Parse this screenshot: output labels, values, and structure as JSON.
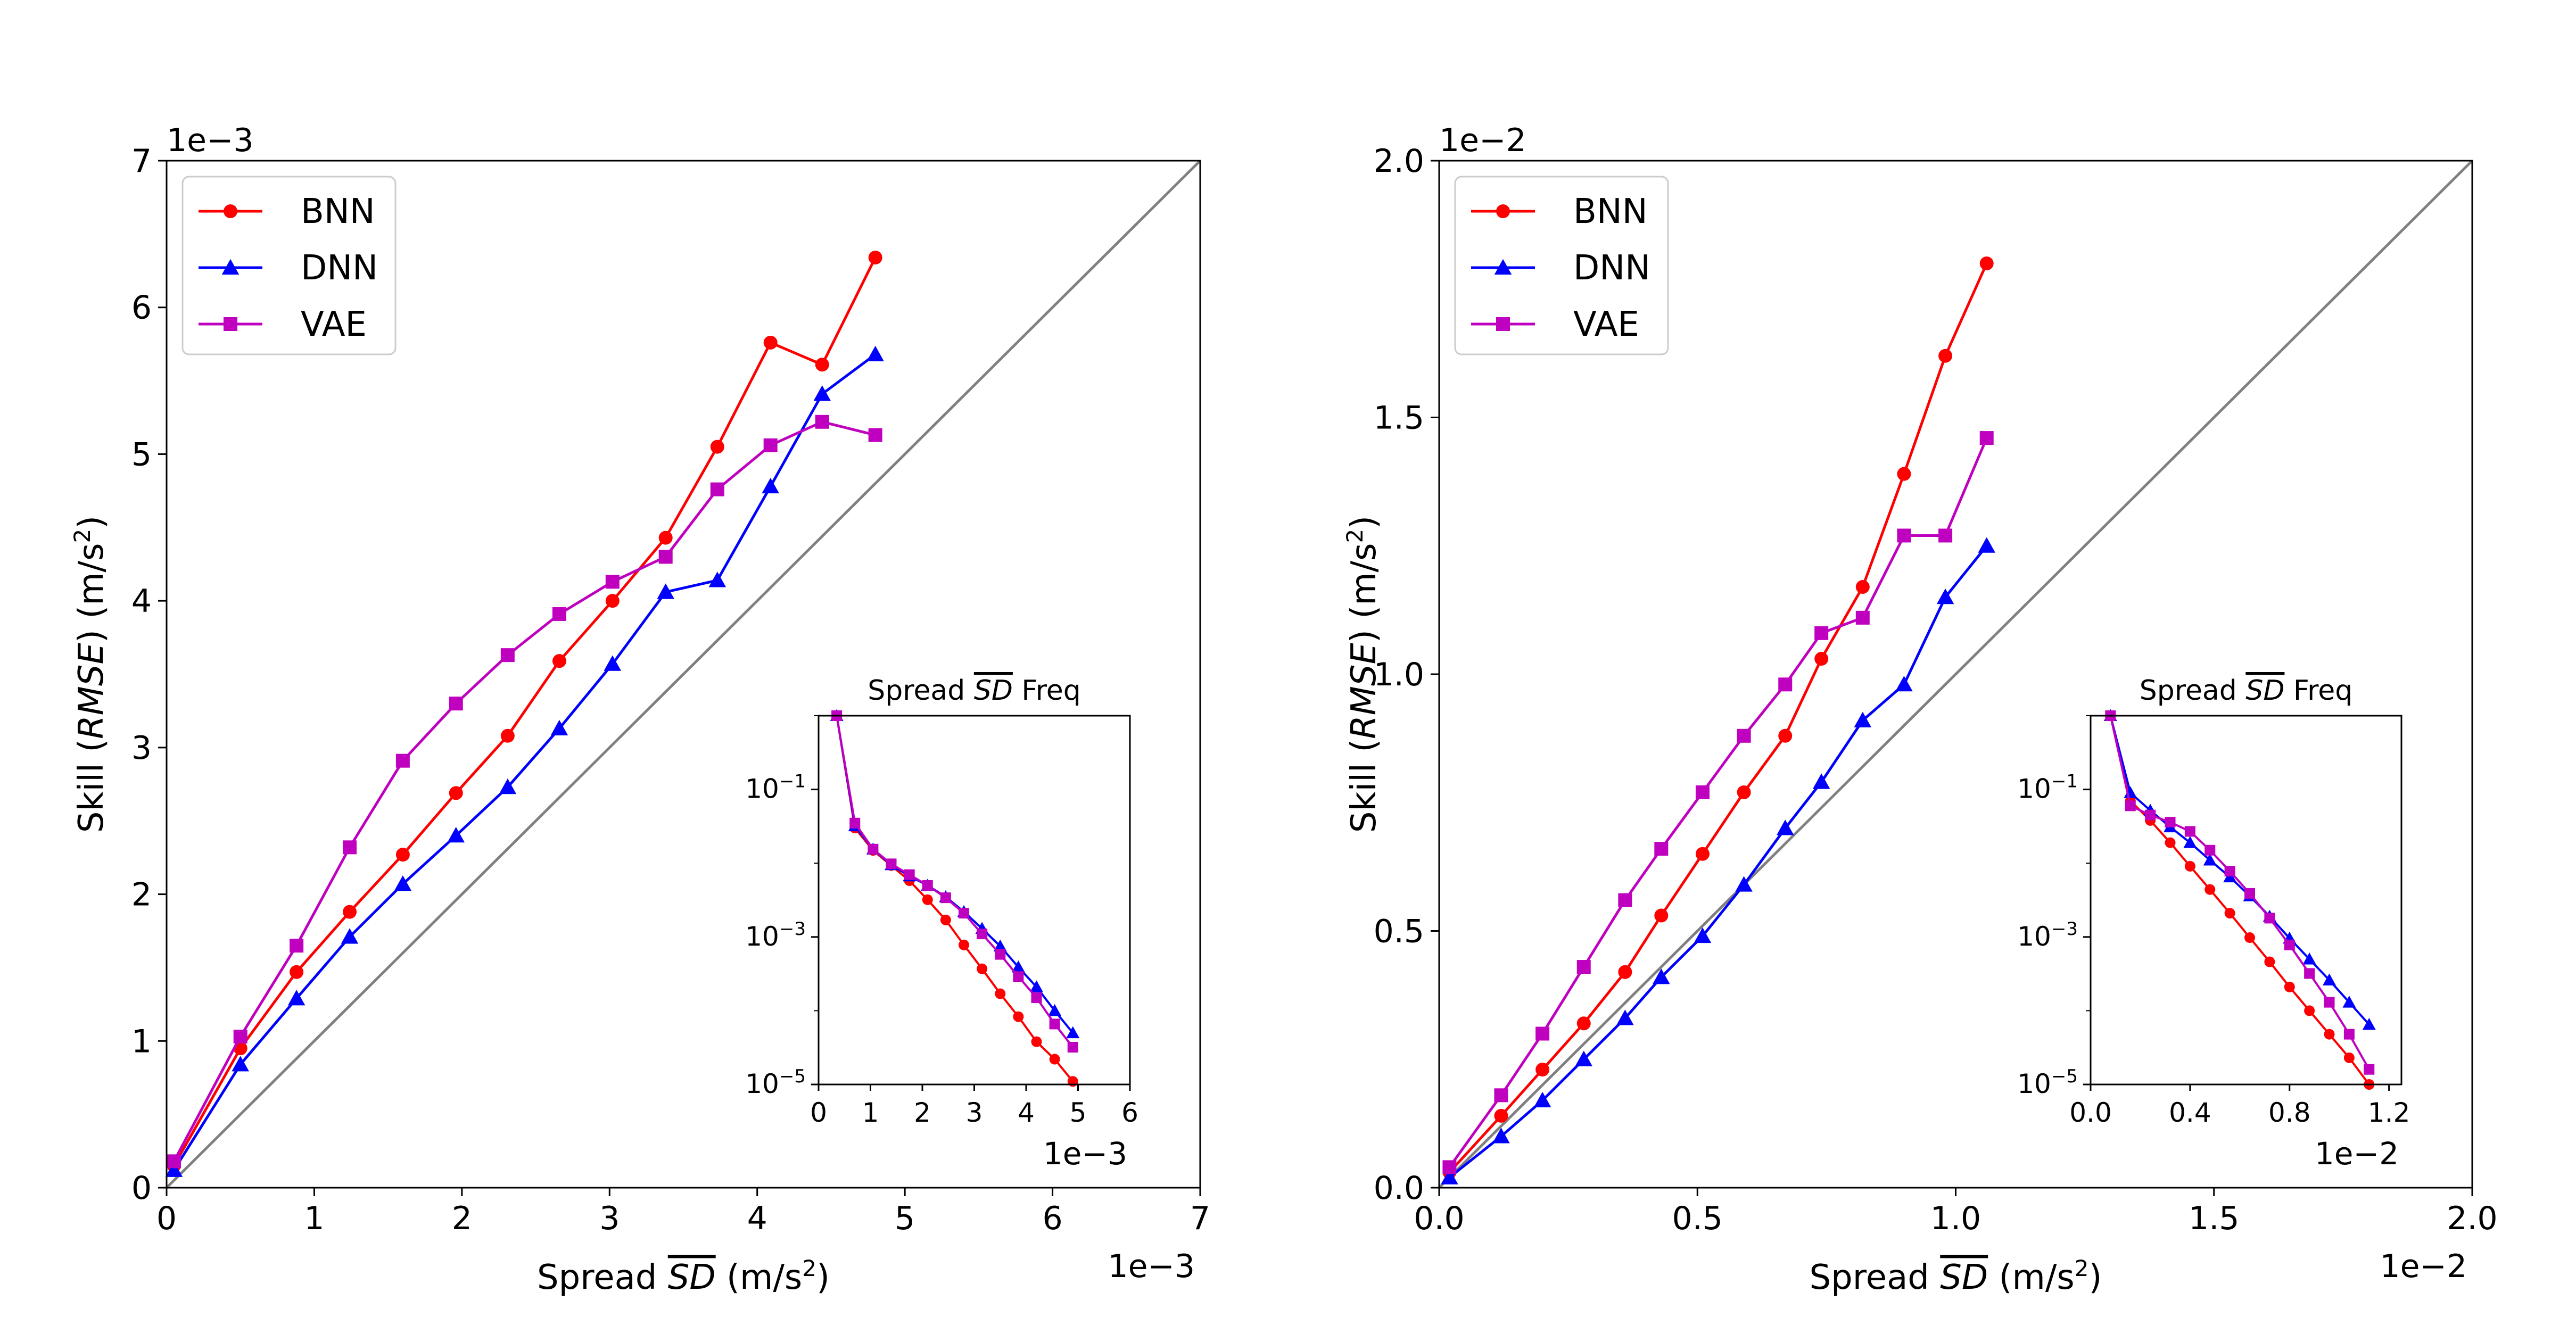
{
  "chart_data": [
    {
      "type": "line",
      "id": "left",
      "offset_label_y": "1e−3",
      "offset_label_x": "1e−3",
      "xlabel_pre": "Spread ",
      "xlabel_sym": "SD",
      "xlabel_post": " (m/s",
      "ylabel_pre": "Skill (",
      "ylabel_sym": "RMSE",
      "ylabel_post": ") (m/s",
      "xlim": [
        0,
        7
      ],
      "ylim": [
        0,
        7
      ],
      "xticks": [
        0,
        1,
        2,
        3,
        4,
        5,
        6,
        7
      ],
      "yticks": [
        0,
        1,
        2,
        3,
        4,
        5,
        6,
        7
      ],
      "xtick_labels": [
        "0",
        "1",
        "2",
        "3",
        "4",
        "5",
        "6",
        "7"
      ],
      "ytick_labels": [
        "0",
        "1",
        "2",
        "3",
        "4",
        "5",
        "6",
        "7"
      ],
      "legend_position": "top-left",
      "diagonal_color": "#808080",
      "series": [
        {
          "name": "BNN",
          "color": "#ff0000",
          "marker": "circle",
          "x": [
            0.05,
            0.5,
            0.88,
            1.24,
            1.6,
            1.96,
            2.31,
            2.66,
            3.02,
            3.38,
            3.73,
            4.09,
            4.44,
            4.8
          ],
          "y": [
            0.15,
            0.95,
            1.47,
            1.88,
            2.27,
            2.69,
            3.08,
            3.59,
            4.0,
            4.43,
            5.05,
            5.76,
            5.61,
            6.34
          ]
        },
        {
          "name": "DNN",
          "color": "#0000ff",
          "marker": "triangle",
          "x": [
            0.05,
            0.5,
            0.88,
            1.24,
            1.6,
            1.96,
            2.31,
            2.66,
            3.02,
            3.38,
            3.73,
            4.09,
            4.44,
            4.8
          ],
          "y": [
            0.12,
            0.84,
            1.29,
            1.71,
            2.07,
            2.4,
            2.73,
            3.13,
            3.57,
            4.06,
            4.14,
            4.78,
            5.41,
            5.68
          ]
        },
        {
          "name": "VAE",
          "color": "#bf00bf",
          "marker": "square",
          "x": [
            0.05,
            0.5,
            0.88,
            1.24,
            1.6,
            1.96,
            2.31,
            2.66,
            3.02,
            3.38,
            3.73,
            4.09,
            4.44,
            4.8
          ],
          "y": [
            0.18,
            1.03,
            1.65,
            2.32,
            2.91,
            3.3,
            3.63,
            3.91,
            4.13,
            4.3,
            4.76,
            5.06,
            5.22,
            5.13
          ]
        }
      ],
      "inset": {
        "title_pre": "Spread ",
        "title_sym": "SD",
        "title_post": " Freq",
        "offset_label_x": "1e−3",
        "xlim": [
          0,
          6
        ],
        "ylog_lim": [
          -5,
          0
        ],
        "xticks": [
          0,
          1,
          2,
          3,
          4,
          5,
          6
        ],
        "xtick_labels": [
          "0",
          "1",
          "2",
          "3",
          "4",
          "5",
          "6"
        ],
        "yticks_exp": [
          -5,
          -3,
          -1
        ],
        "series": [
          {
            "name": "BNN",
            "color": "#ff0000",
            "marker": "circle",
            "x": [
              0.35,
              0.7,
              1.05,
              1.4,
              1.75,
              2.1,
              2.45,
              2.8,
              3.15,
              3.5,
              3.85,
              4.2,
              4.55,
              4.9
            ],
            "y": [
              1.0,
              0.03,
              0.0149,
              0.0093,
              0.0058,
              0.0032,
              0.0017,
              0.00078,
              0.00037,
              0.00017,
              8.3e-05,
              3.8e-05,
              2.2e-05,
              1.1e-05
            ]
          },
          {
            "name": "DNN",
            "color": "#0000ff",
            "marker": "triangle",
            "x": [
              0.35,
              0.7,
              1.05,
              1.4,
              1.75,
              2.1,
              2.45,
              2.8,
              3.15,
              3.5,
              3.85,
              4.2,
              4.55,
              4.9
            ],
            "y": [
              1.0,
              0.032,
              0.0155,
              0.0095,
              0.0067,
              0.005,
              0.0035,
              0.0022,
              0.0013,
              0.00075,
              0.00039,
              0.00021,
              0.0001,
              5e-05
            ]
          },
          {
            "name": "VAE",
            "color": "#bf00bf",
            "marker": "square",
            "x": [
              0.35,
              0.7,
              1.05,
              1.4,
              1.75,
              2.1,
              2.45,
              2.8,
              3.15,
              3.5,
              3.85,
              4.2,
              4.55,
              4.9
            ],
            "y": [
              1.0,
              0.035,
              0.0155,
              0.0098,
              0.007,
              0.005,
              0.0034,
              0.0021,
              0.0011,
              0.00058,
              0.00029,
              0.00015,
              6.6e-05,
              3.2e-05
            ]
          }
        ]
      }
    },
    {
      "type": "line",
      "id": "right",
      "offset_label_y": "1e−2",
      "offset_label_x": "1e−2",
      "xlabel_pre": "Spread ",
      "xlabel_sym": "SD",
      "xlabel_post": " (m/s",
      "ylabel_pre": "Skill (",
      "ylabel_sym": "RMSE",
      "ylabel_post": ") (m/s",
      "xlim": [
        0,
        2.0
      ],
      "ylim": [
        0,
        2.0
      ],
      "xticks": [
        0,
        0.5,
        1.0,
        1.5,
        2.0
      ],
      "yticks": [
        0,
        0.5,
        1.0,
        1.5,
        2.0
      ],
      "xtick_labels": [
        "0.0",
        "0.5",
        "1.0",
        "1.5",
        "2.0"
      ],
      "ytick_labels": [
        "0.0",
        "0.5",
        "1.0",
        "1.5",
        "2.0"
      ],
      "legend_position": "top-left",
      "diagonal_color": "#808080",
      "series": [
        {
          "name": "BNN",
          "color": "#ff0000",
          "marker": "circle",
          "x": [
            0.02,
            0.12,
            0.2,
            0.28,
            0.36,
            0.43,
            0.51,
            0.59,
            0.67,
            0.74,
            0.82,
            0.9,
            0.98,
            1.06
          ],
          "y": [
            0.03,
            0.14,
            0.23,
            0.32,
            0.42,
            0.53,
            0.65,
            0.77,
            0.88,
            1.03,
            1.17,
            1.39,
            1.62,
            1.8
          ]
        },
        {
          "name": "DNN",
          "color": "#0000ff",
          "marker": "triangle",
          "x": [
            0.02,
            0.12,
            0.2,
            0.28,
            0.36,
            0.43,
            0.51,
            0.59,
            0.67,
            0.74,
            0.82,
            0.9,
            0.98,
            1.06
          ],
          "y": [
            0.02,
            0.1,
            0.17,
            0.25,
            0.33,
            0.41,
            0.49,
            0.59,
            0.7,
            0.79,
            0.91,
            0.98,
            1.15,
            1.25
          ]
        },
        {
          "name": "VAE",
          "color": "#bf00bf",
          "marker": "square",
          "x": [
            0.02,
            0.12,
            0.2,
            0.28,
            0.36,
            0.43,
            0.51,
            0.59,
            0.67,
            0.74,
            0.82,
            0.9,
            0.98,
            1.06
          ],
          "y": [
            0.04,
            0.18,
            0.3,
            0.43,
            0.56,
            0.66,
            0.77,
            0.88,
            0.98,
            1.08,
            1.11,
            1.27,
            1.27,
            1.46
          ]
        }
      ],
      "inset": {
        "title_pre": "Spread ",
        "title_sym": "SD",
        "title_post": " Freq",
        "offset_label_x": "1e−2",
        "xlim": [
          0,
          1.25
        ],
        "ylog_lim": [
          -5,
          0
        ],
        "xticks": [
          0,
          0.4,
          0.8,
          1.2
        ],
        "xtick_labels": [
          "0.0",
          "0.4",
          "0.8",
          "1.2"
        ],
        "yticks_exp": [
          -5,
          -3,
          -1
        ],
        "series": [
          {
            "name": "BNN",
            "color": "#ff0000",
            "marker": "circle",
            "x": [
              0.08,
              0.16,
              0.24,
              0.32,
              0.4,
              0.48,
              0.56,
              0.64,
              0.72,
              0.8,
              0.88,
              0.96,
              1.04,
              1.12
            ],
            "y": [
              1.0,
              0.07,
              0.038,
              0.019,
              0.0091,
              0.0044,
              0.0021,
              0.00098,
              0.00046,
              0.00021,
              0.0001,
              4.8e-05,
              2.3e-05,
              1e-05
            ]
          },
          {
            "name": "DNN",
            "color": "#0000ff",
            "marker": "triangle",
            "x": [
              0.08,
              0.16,
              0.24,
              0.32,
              0.4,
              0.48,
              0.56,
              0.64,
              0.72,
              0.8,
              0.88,
              0.96,
              1.04,
              1.12
            ],
            "y": [
              1.0,
              0.09,
              0.052,
              0.031,
              0.019,
              0.011,
              0.0065,
              0.0036,
              0.0019,
              0.00096,
              0.0005,
              0.00026,
              0.00013,
              6.5e-05
            ]
          },
          {
            "name": "VAE",
            "color": "#bf00bf",
            "marker": "square",
            "x": [
              0.08,
              0.16,
              0.24,
              0.32,
              0.4,
              0.48,
              0.56,
              0.64,
              0.72,
              0.8,
              0.88,
              0.96,
              1.04,
              1.12
            ],
            "y": [
              1.0,
              0.06,
              0.045,
              0.036,
              0.027,
              0.015,
              0.0078,
              0.0039,
              0.0018,
              0.00078,
              0.00032,
              0.00013,
              4.8e-05,
              1.6e-05
            ]
          }
        ]
      }
    }
  ]
}
